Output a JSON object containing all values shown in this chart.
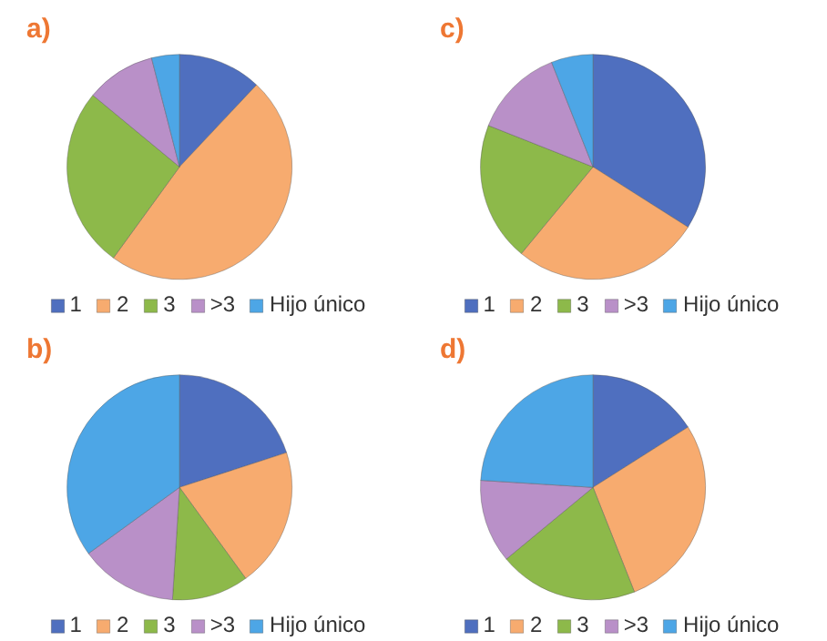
{
  "chart_data": [
    {
      "type": "pie",
      "title": "a)",
      "categories": [
        "1",
        "2",
        "3",
        ">3",
        "Hijo único"
      ],
      "values": [
        12,
        48,
        26,
        10,
        4
      ],
      "colors": [
        "#4f6fbf",
        "#f7ab6f",
        "#8db94a",
        "#b990c8",
        "#4da6e6"
      ],
      "legend": "bottom"
    },
    {
      "type": "pie",
      "title": "c)",
      "categories": [
        "1",
        "2",
        "3",
        ">3",
        "Hijo único"
      ],
      "values": [
        34,
        27,
        20,
        13,
        6
      ],
      "colors": [
        "#4f6fbf",
        "#f7ab6f",
        "#8db94a",
        "#b990c8",
        "#4da6e6"
      ],
      "legend": "bottom"
    },
    {
      "type": "pie",
      "title": "b)",
      "categories": [
        "1",
        "2",
        "3",
        ">3",
        "Hijo único"
      ],
      "values": [
        20,
        20,
        11,
        14,
        35
      ],
      "colors": [
        "#4f6fbf",
        "#f7ab6f",
        "#8db94a",
        "#b990c8",
        "#4da6e6"
      ],
      "legend": "bottom"
    },
    {
      "type": "pie",
      "title": "d)",
      "categories": [
        "1",
        "2",
        "3",
        ">3",
        "Hijo único"
      ],
      "values": [
        16,
        28,
        20,
        12,
        24
      ],
      "colors": [
        "#4f6fbf",
        "#f7ab6f",
        "#8db94a",
        "#b990c8",
        "#4da6e6"
      ],
      "legend": "bottom"
    }
  ]
}
